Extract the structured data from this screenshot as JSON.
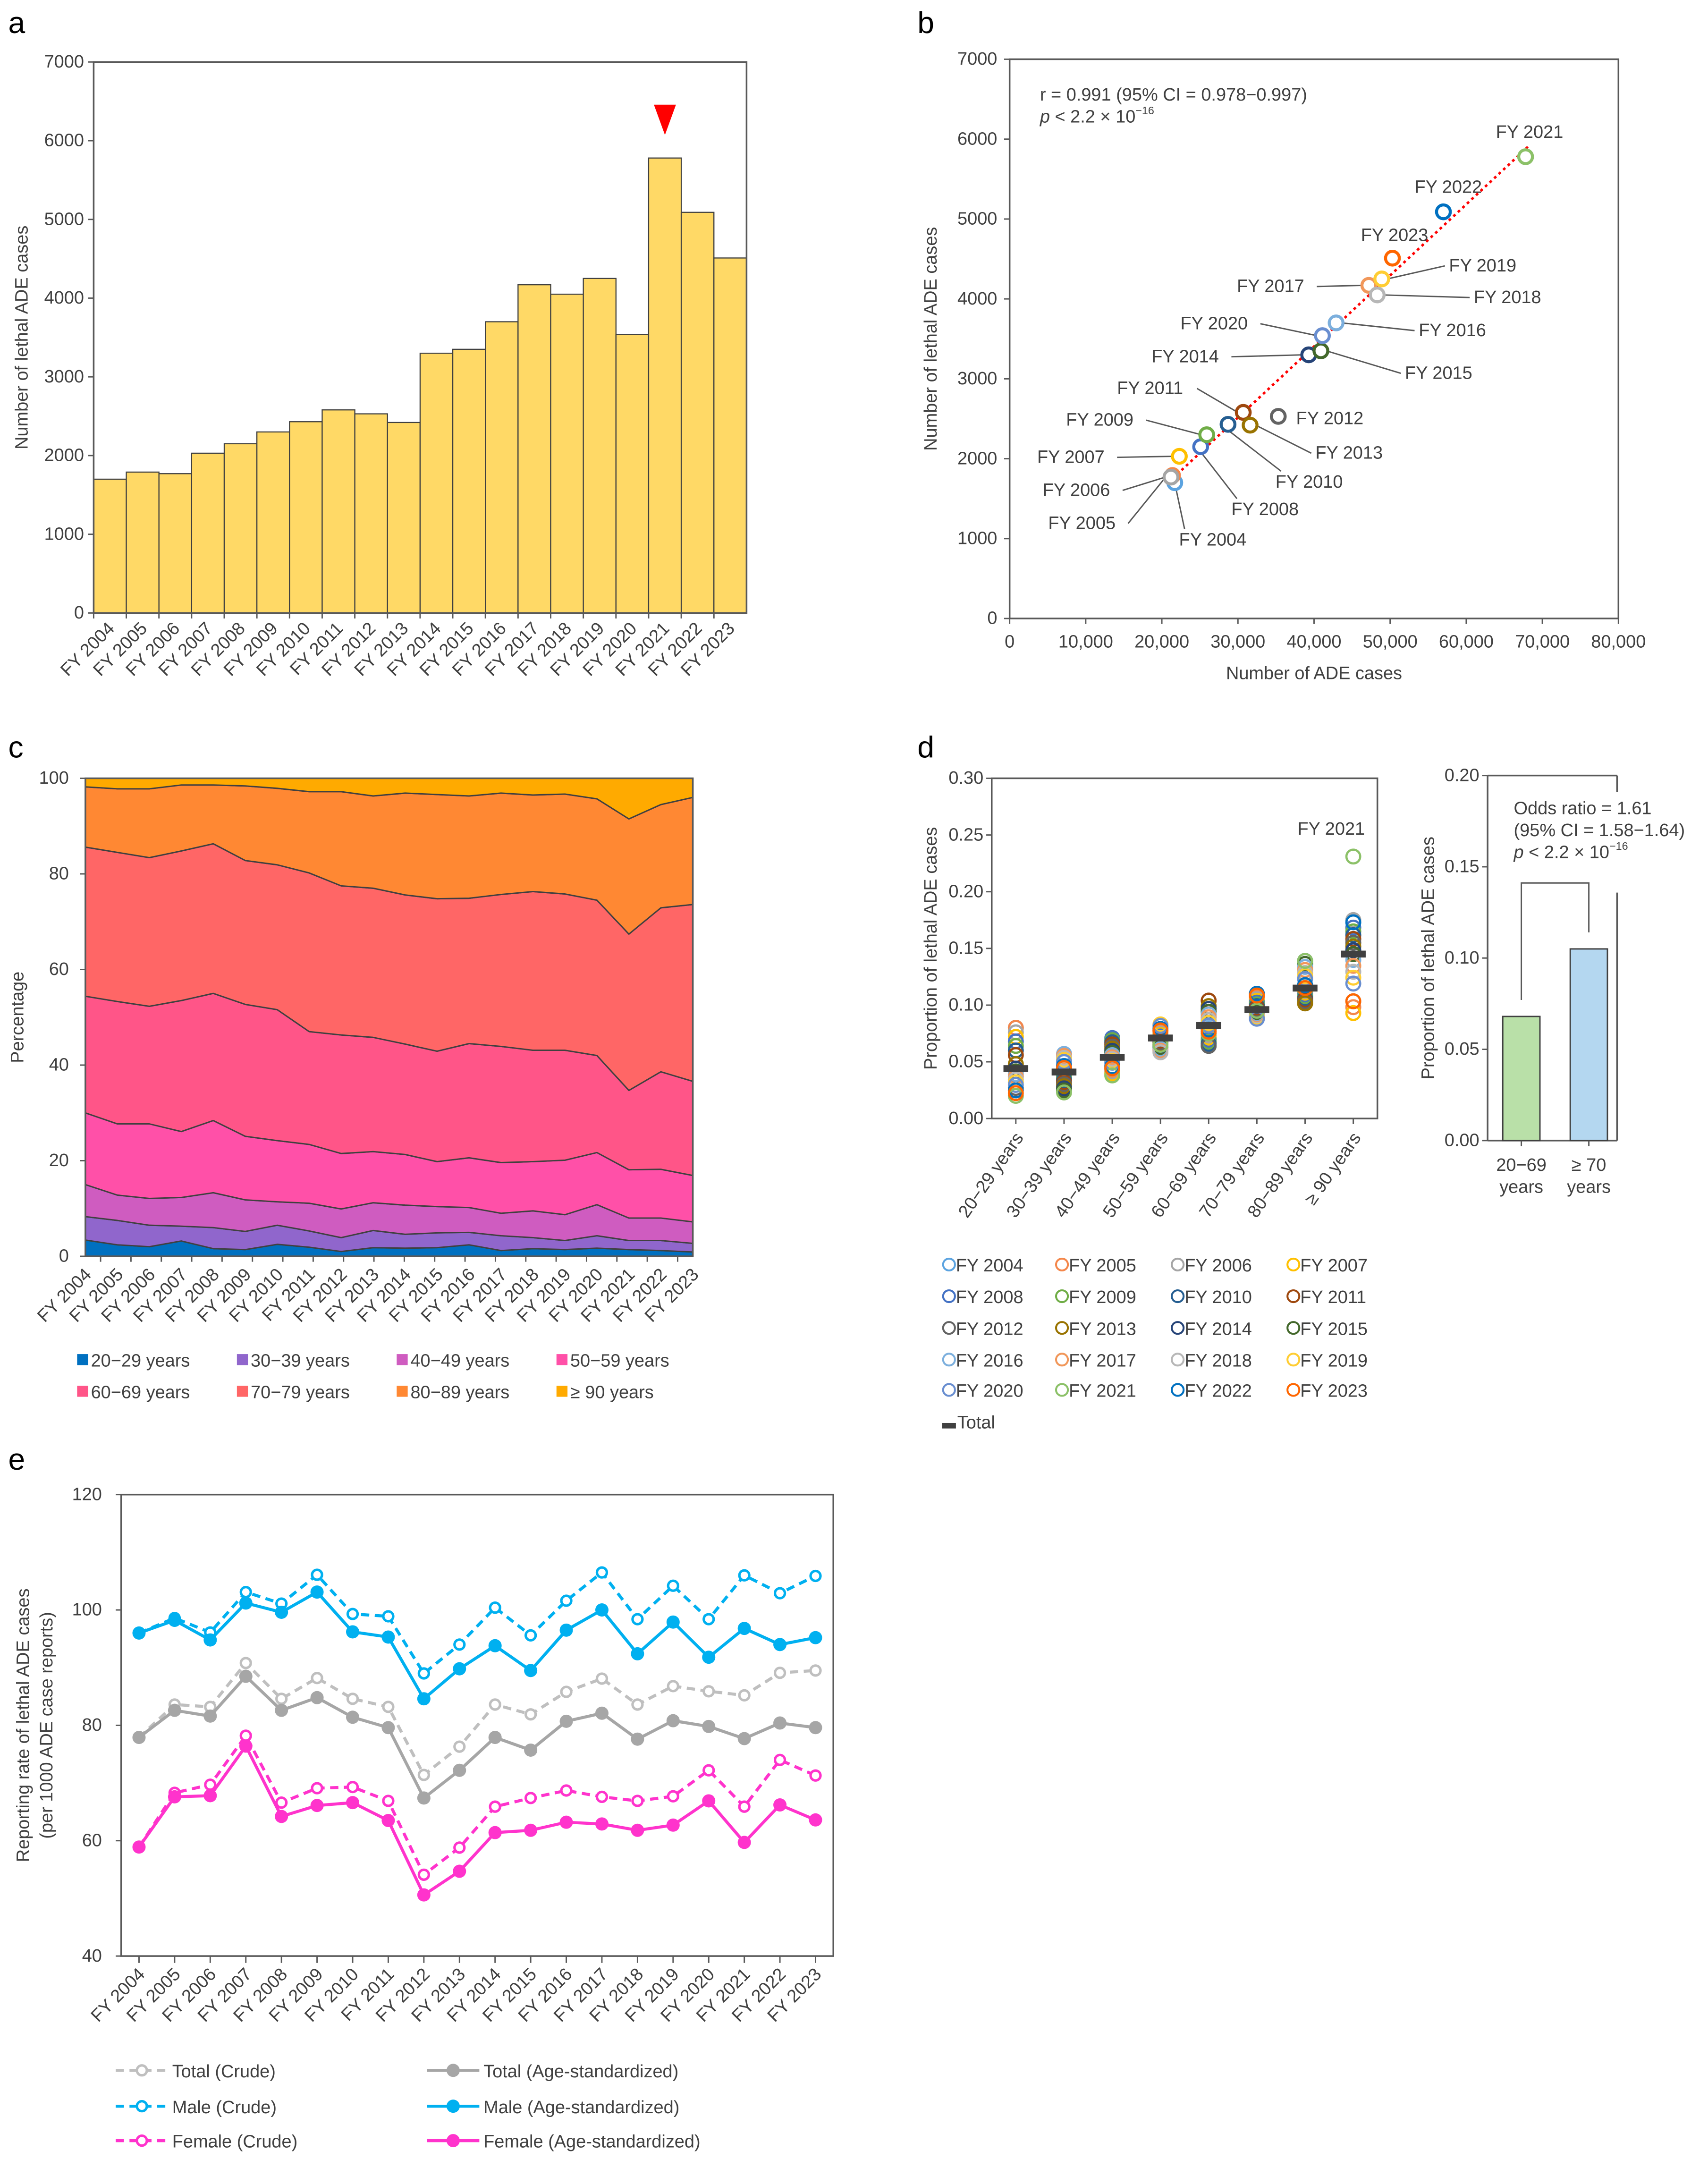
{
  "panel_labels": [
    "a",
    "b",
    "c",
    "d",
    "e"
  ],
  "chart_data": [
    {
      "type": "bar",
      "title": "",
      "categories": [
        "FY 2004",
        "FY 2005",
        "FY 2006",
        "FY 2007",
        "FY 2008",
        "FY 2009",
        "FY 2010",
        "FY 2011",
        "FY 2012",
        "FY 2013",
        "FY 2014",
        "FY 2015",
        "FY 2016",
        "FY 2017",
        "FY 2018",
        "FY 2019",
        "FY 2020",
        "FY 2021",
        "FY 2022",
        "FY 2023"
      ],
      "values": [
        1700,
        1790,
        1770,
        2030,
        2150,
        2300,
        2430,
        2580,
        2530,
        2420,
        3300,
        3350,
        3700,
        4170,
        4050,
        4250,
        3540,
        5780,
        5090,
        4510
      ],
      "xlabel": "",
      "ylabel": "Number of lethal ADE cases",
      "ylim": [
        0,
        7000
      ],
      "yticks": [
        "0",
        "1000",
        "2000",
        "3000",
        "4000",
        "5000",
        "6000",
        "7000"
      ],
      "bar_color": "#FFD966",
      "highlight": "FY 2021",
      "marker_color": "#FF0000"
    },
    {
      "type": "scatter",
      "xlabel": "Number of ADE cases",
      "ylabel": "Number of lethal ADE cases",
      "xlim": [
        0,
        80000
      ],
      "ylim": [
        0,
        7000
      ],
      "xticks": [
        "0",
        "10,000",
        "20,000",
        "30,000",
        "40,000",
        "50,000",
        "60,000",
        "70,000",
        "80,000"
      ],
      "yticks": [
        "0",
        "1000",
        "2000",
        "3000",
        "4000",
        "5000",
        "6000",
        "7000"
      ],
      "trendline_color": "#FF0000",
      "stats": {
        "r_text": "r = 0.991 (95% CI = 0.978−0.997)",
        "p_symbol": "p",
        "p_text": " < 2.2 × 10",
        "p_exp": "−16"
      },
      "points": [
        {
          "label": "FY 2004",
          "x": 21700,
          "y": 1700,
          "color": "#5BA3E0"
        },
        {
          "label": "FY 2005",
          "x": 21400,
          "y": 1790,
          "color": "#F4874B"
        },
        {
          "label": "FY 2006",
          "x": 21200,
          "y": 1770,
          "color": "#A5A5A5"
        },
        {
          "label": "FY 2007",
          "x": 22300,
          "y": 2030,
          "color": "#FFC000"
        },
        {
          "label": "FY 2008",
          "x": 25100,
          "y": 2150,
          "color": "#4472C4"
        },
        {
          "label": "FY 2009",
          "x": 25900,
          "y": 2300,
          "color": "#70AD47"
        },
        {
          "label": "FY 2010",
          "x": 28700,
          "y": 2430,
          "color": "#255E91"
        },
        {
          "label": "FY 2011",
          "x": 30700,
          "y": 2580,
          "color": "#9E480E"
        },
        {
          "label": "FY 2012",
          "x": 35300,
          "y": 2530,
          "color": "#636363"
        },
        {
          "label": "FY 2013",
          "x": 31600,
          "y": 2420,
          "color": "#997300"
        },
        {
          "label": "FY 2014",
          "x": 39300,
          "y": 3300,
          "color": "#264478"
        },
        {
          "label": "FY 2015",
          "x": 40900,
          "y": 3350,
          "color": "#43682B"
        },
        {
          "label": "FY 2016",
          "x": 42900,
          "y": 3700,
          "color": "#7CAFDD"
        },
        {
          "label": "FY 2017",
          "x": 47200,
          "y": 4170,
          "color": "#F1975A"
        },
        {
          "label": "FY 2018",
          "x": 48300,
          "y": 4050,
          "color": "#B7B7B7"
        },
        {
          "label": "FY 2019",
          "x": 48900,
          "y": 4250,
          "color": "#FFCD33"
        },
        {
          "label": "FY 2020",
          "x": 41100,
          "y": 3540,
          "color": "#698ED0"
        },
        {
          "label": "FY 2021",
          "x": 67800,
          "y": 5780,
          "color": "#8CC168"
        },
        {
          "label": "FY 2022",
          "x": 57000,
          "y": 5090,
          "color": "#0070C0"
        },
        {
          "label": "FY 2023",
          "x": 50300,
          "y": 4510,
          "color": "#FF6600"
        }
      ]
    },
    {
      "type": "area",
      "stacked": true,
      "ylabel": "Percentage",
      "ylim": [
        0,
        100
      ],
      "yticks": [
        "0",
        "20",
        "40",
        "60",
        "80",
        "100"
      ],
      "categories": [
        "FY 2004",
        "FY 2005",
        "FY 2006",
        "FY 2007",
        "FY 2008",
        "FY 2009",
        "FY 2010",
        "FY 2011",
        "FY 2012",
        "FY 2013",
        "FY 2014",
        "FY 2015",
        "FY 2016",
        "FY 2017",
        "FY 2018",
        "FY 2019",
        "FY 2020",
        "FY 2021",
        "FY 2022",
        "FY 2023"
      ],
      "series": [
        {
          "name": "20−29 years",
          "color": "#0070C0",
          "values": [
            3.4,
            2.4,
            2.0,
            3.2,
            1.6,
            1.4,
            2.5,
            1.9,
            1.0,
            1.8,
            1.7,
            1.8,
            2.4,
            1.2,
            1.6,
            1.4,
            1.7,
            1.4,
            1.2,
            0.9
          ]
        },
        {
          "name": "30−39 years",
          "color": "#9066CC",
          "values": [
            4.9,
            5.1,
            4.5,
            3.1,
            4.4,
            3.8,
            4.0,
            3.4,
            2.9,
            3.6,
            2.9,
            3.1,
            2.6,
            3.1,
            2.3,
            1.9,
            2.6,
            1.9,
            2.1,
            1.8
          ]
        },
        {
          "name": "40−49 years",
          "color": "#CF5CC0",
          "values": [
            6.7,
            5.3,
            5.6,
            6.0,
            7.3,
            6.6,
            4.9,
            5.8,
            6.0,
            5.8,
            6.1,
            5.5,
            5.2,
            4.7,
            5.6,
            5.4,
            6.5,
            4.7,
            4.7,
            4.5
          ]
        },
        {
          "name": "50−59 years",
          "color": "#FF50A8",
          "values": [
            15.0,
            14.9,
            15.6,
            13.8,
            15.1,
            13.3,
            12.8,
            12.3,
            11.6,
            10.7,
            10.6,
            9.4,
            10.4,
            10.6,
            10.3,
            11.4,
            10.9,
            10.1,
            10.2,
            9.7
          ]
        },
        {
          "name": "60−69 years",
          "color": "#FF5588",
          "values": [
            24.4,
            25.6,
            24.6,
            27.4,
            26.6,
            27.6,
            27.4,
            23.6,
            24.8,
            23.9,
            23.1,
            23.1,
            23.9,
            24.3,
            23.3,
            23.0,
            20.3,
            16.6,
            20.4,
            19.7
          ]
        },
        {
          "name": "70−79 years",
          "color": "#FF6666",
          "values": [
            31.2,
            31.2,
            31.1,
            31.3,
            31.3,
            30.1,
            30.3,
            33.2,
            31.2,
            31.2,
            31.2,
            31.9,
            30.4,
            31.8,
            33.2,
            32.7,
            32.5,
            32.7,
            34.3,
            37.0
          ]
        },
        {
          "name": "80−89 years",
          "color": "#FF8833",
          "values": [
            12.6,
            13.3,
            14.4,
            13.8,
            12.3,
            15.6,
            16.0,
            17.0,
            19.7,
            19.3,
            21.3,
            21.8,
            21.4,
            21.2,
            20.2,
            20.9,
            21.2,
            24.1,
            21.6,
            22.4
          ]
        },
        {
          "name": "≥ 90 years",
          "color": "#FFAA00",
          "values": [
            1.8,
            2.2,
            2.2,
            1.4,
            1.4,
            1.6,
            2.1,
            2.8,
            2.8,
            3.7,
            3.1,
            3.4,
            3.7,
            3.1,
            3.5,
            3.3,
            4.3,
            8.5,
            5.5,
            4.0
          ]
        }
      ]
    },
    {
      "type": "scatter",
      "ylabel": "Proportion of lethal ADE cases",
      "ylim": [
        0,
        0.3
      ],
      "yticks": [
        "0.00",
        "0.05",
        "0.10",
        "0.15",
        "0.20",
        "0.25",
        "0.30"
      ],
      "categories": [
        "20−29 years",
        "30−39 years",
        "40−49 years",
        "50−59 years",
        "60−69 years",
        "70−79 years",
        "80−89 years",
        "≥ 90 years"
      ],
      "total": [
        0.044,
        0.041,
        0.054,
        0.071,
        0.082,
        0.096,
        0.115,
        0.145
      ],
      "year_range": [
        [
          0.02,
          0.08
        ],
        [
          0.023,
          0.057
        ],
        [
          0.038,
          0.071
        ],
        [
          0.057,
          0.083
        ],
        [
          0.064,
          0.104
        ],
        [
          0.086,
          0.11
        ],
        [
          0.1,
          0.139
        ],
        [
          0.093,
          0.231
        ]
      ],
      "fy2021": [
        0.02,
        0.023,
        0.038,
        0.065,
        0.075,
        0.095,
        0.139,
        0.231
      ],
      "annotation": "FY 2021",
      "legend": {
        "years": [
          "FY 2004",
          "FY 2005",
          "FY 2006",
          "FY 2007",
          "FY 2008",
          "FY 2009",
          "FY 2010",
          "FY 2011",
          "FY 2012",
          "FY 2013",
          "FY 2014",
          "FY 2015",
          "FY 2016",
          "FY 2017",
          "FY 2018",
          "FY 2019",
          "FY 2020",
          "FY 2021",
          "FY 2022",
          "FY 2023"
        ],
        "colors": [
          "#5BA3E0",
          "#F4874B",
          "#A5A5A5",
          "#FFC000",
          "#4472C4",
          "#70AD47",
          "#255E91",
          "#9E480E",
          "#636363",
          "#997300",
          "#264478",
          "#43682B",
          "#7CAFDD",
          "#F1975A",
          "#B7B7B7",
          "#FFCD33",
          "#698ED0",
          "#8CC168",
          "#0070C0",
          "#FF6600"
        ],
        "total_label": "Total",
        "total_color": "#404040"
      }
    },
    {
      "type": "bar",
      "ylabel": "Proportion of lethal ADE cases",
      "ylim": [
        0,
        0.2
      ],
      "yticks": [
        "0.00",
        "0.05",
        "0.10",
        "0.15",
        "0.20"
      ],
      "categories": [
        [
          "20−69",
          "years"
        ],
        [
          "≥ 70",
          "years"
        ]
      ],
      "values": [
        0.068,
        0.105
      ],
      "colors": [
        "#B9E0A8",
        "#B4D7F0"
      ],
      "annotation": {
        "odds_ratio": "Odds ratio = 1.61",
        "ci": "(95% CI = 1.58−1.64)",
        "p_symbol": "p",
        "p_text": " < 2.2 × 10",
        "p_exp": "−16"
      }
    },
    {
      "type": "line",
      "ylabel": [
        "Reporting rate of lethal ADE cases",
        "(per 1000 ADE case reports)"
      ],
      "ylim": [
        40,
        120
      ],
      "yticks": [
        "40",
        "60",
        "80",
        "100",
        "120"
      ],
      "categories": [
        "FY 2004",
        "FY 2005",
        "FY 2006",
        "FY 2007",
        "FY 2008",
        "FY 2009",
        "FY 2010",
        "FY 2011",
        "FY 2012",
        "FY 2013",
        "FY 2014",
        "FY 2015",
        "FY 2016",
        "FY 2017",
        "FY 2018",
        "FY 2019",
        "FY 2020",
        "FY 2021",
        "FY 2022",
        "FY 2023"
      ],
      "series": [
        {
          "name": "Total (Crude)",
          "color": "#BFBFBF",
          "style": "crude",
          "values": [
            77.9,
            83.6,
            83.2,
            90.8,
            84.6,
            88.2,
            84.6,
            83.2,
            71.4,
            76.3,
            83.6,
            81.9,
            85.8,
            88.1,
            83.6,
            86.8,
            85.9,
            85.2,
            89.1,
            89.5
          ]
        },
        {
          "name": "Total (Age-standardized)",
          "color": "#A6A6A6",
          "style": "std",
          "values": [
            77.9,
            82.6,
            81.6,
            88.5,
            82.6,
            84.8,
            81.4,
            79.6,
            67.4,
            72.2,
            77.9,
            75.7,
            80.7,
            82.1,
            77.6,
            80.8,
            79.8,
            77.7,
            80.4,
            79.6
          ]
        },
        {
          "name": "Male (Crude)",
          "color": "#00B0F0",
          "style": "crude",
          "values": [
            96.0,
            98.6,
            96.1,
            103.1,
            101.1,
            106.1,
            99.3,
            98.9,
            89.0,
            94.0,
            100.4,
            95.6,
            101.6,
            106.5,
            98.4,
            104.2,
            98.4,
            106.0,
            102.9,
            105.9
          ]
        },
        {
          "name": "Male (Age-standardized)",
          "color": "#00B0F0",
          "style": "std",
          "values": [
            96.0,
            98.2,
            94.8,
            101.2,
            99.6,
            103.1,
            96.2,
            95.3,
            84.6,
            89.8,
            93.8,
            89.5,
            96.5,
            100.0,
            92.4,
            97.9,
            91.8,
            96.8,
            94.0,
            95.2
          ]
        },
        {
          "name": "Female (Crude)",
          "color": "#FF33CC",
          "style": "crude",
          "values": [
            58.9,
            68.3,
            69.7,
            78.2,
            66.6,
            69.1,
            69.3,
            66.9,
            54.1,
            58.8,
            65.9,
            67.4,
            68.7,
            67.6,
            66.9,
            67.7,
            72.2,
            65.9,
            74.0,
            71.3
          ]
        },
        {
          "name": "Female (Age-standardized)",
          "color": "#FF33CC",
          "style": "std",
          "values": [
            58.9,
            67.6,
            67.8,
            76.4,
            64.2,
            66.1,
            66.6,
            63.5,
            50.6,
            54.7,
            61.4,
            61.8,
            63.2,
            62.9,
            61.8,
            62.7,
            66.9,
            59.7,
            66.2,
            63.6
          ]
        }
      ],
      "legend_order": [
        0,
        1,
        2,
        3,
        4,
        5
      ]
    }
  ]
}
